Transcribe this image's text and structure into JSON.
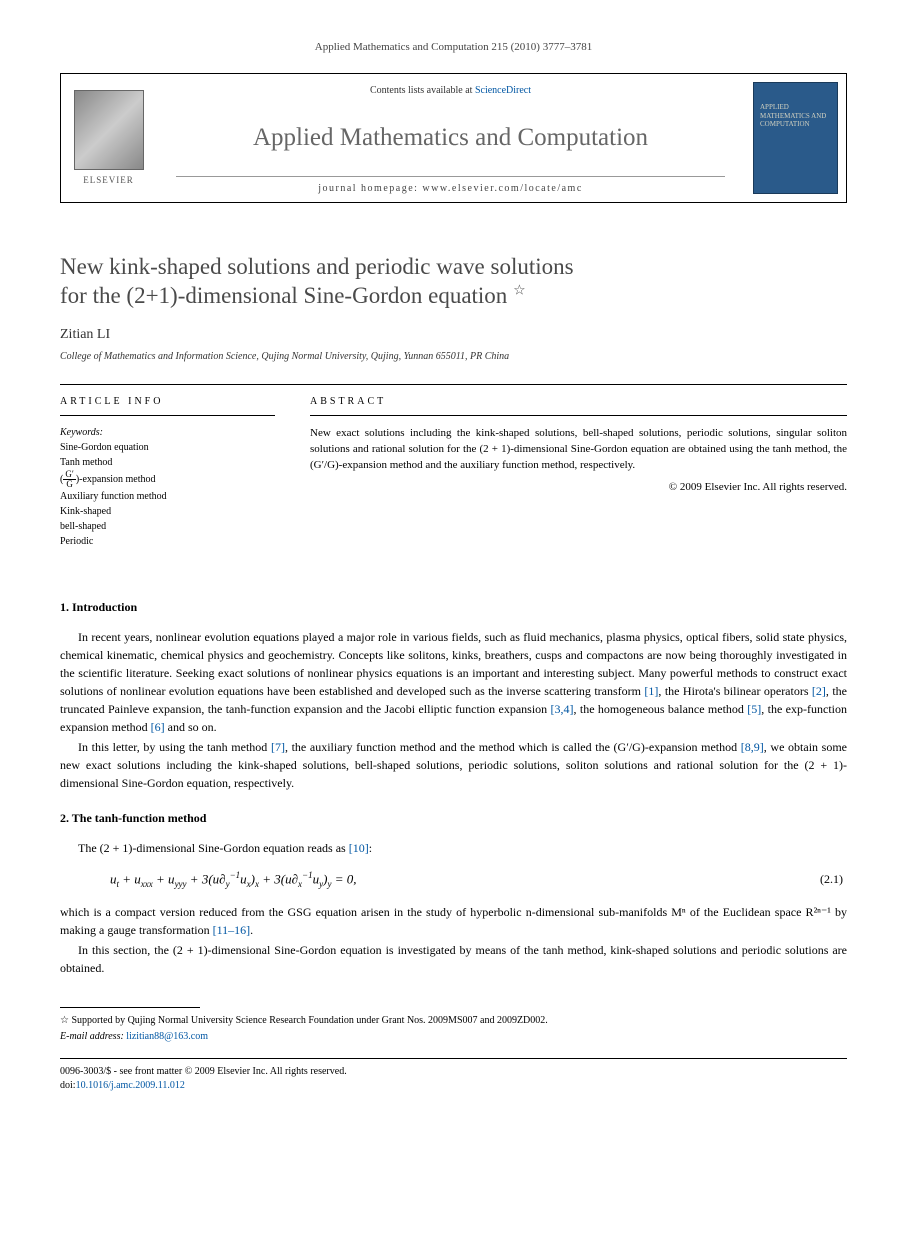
{
  "citation": "Applied Mathematics and Computation 215 (2010) 3777–3781",
  "banner": {
    "contents_prefix": "Contents lists available at ",
    "contents_link": "ScienceDirect",
    "journal_name": "Applied Mathematics and Computation",
    "homepage_label": "journal homepage: www.elsevier.com/locate/amc",
    "publisher": "ELSEVIER",
    "cover_text": "APPLIED MATHEMATICS AND COMPUTATION"
  },
  "title_line1": "New kink-shaped solutions and periodic wave solutions",
  "title_line2": "for the (2+1)-dimensional Sine-Gordon equation",
  "star": "☆",
  "author": "Zitian LI",
  "affiliation": "College of Mathematics and Information Science, Qujing Normal University, Qujing, Yunnan 655011, PR China",
  "info_heading": "ARTICLE INFO",
  "abstract_heading": "ABSTRACT",
  "keywords_label": "Keywords:",
  "keywords": [
    "Sine-Gordon equation",
    "Tanh method",
    "(G′/G)-expansion method",
    "Auxiliary function method",
    "Kink-shaped",
    "bell-shaped",
    "Periodic"
  ],
  "abstract": "New exact solutions including the kink-shaped solutions, bell-shaped solutions, periodic solutions, singular soliton solutions and rational solution for the (2 + 1)-dimensional Sine-Gordon equation are obtained using the tanh method, the (G′/G)-expansion method and the auxiliary function method, respectively.",
  "copyright": "© 2009 Elsevier Inc. All rights reserved.",
  "sections": {
    "intro_heading": "1. Introduction",
    "intro_p1": "In recent years, nonlinear evolution equations played a major role in various fields, such as fluid mechanics, plasma physics, optical fibers, solid state physics, chemical kinematic, chemical physics and geochemistry. Concepts like solitons, kinks, breathers, cusps and compactons are now being thoroughly investigated in the scientific literature. Seeking exact solutions of nonlinear physics equations is an important and interesting subject. Many powerful methods to construct exact solutions of nonlinear evolution equations have been established and developed such as the inverse scattering transform ",
    "intro_p1_r1": "[1]",
    "intro_p1_b": ", the Hirota's bilinear operators ",
    "intro_p1_r2": "[2]",
    "intro_p1_c": ", the truncated Painleve expansion, the tanh-function expansion and the Jacobi elliptic function expansion ",
    "intro_p1_r3": "[3,4]",
    "intro_p1_d": ", the homogeneous balance method ",
    "intro_p1_r5": "[5]",
    "intro_p1_e": ", the exp-function expansion method ",
    "intro_p1_r6": "[6]",
    "intro_p1_f": " and so on.",
    "intro_p2a": "In this letter, by using the tanh method ",
    "intro_p2_r7": "[7]",
    "intro_p2b": ", the auxiliary function method and the method which is called the (G′/G)-expansion method ",
    "intro_p2_r89": "[8,9]",
    "intro_p2c": ", we obtain some new exact solutions including the kink-shaped solutions, bell-shaped solutions, periodic solutions, soliton solutions and rational solution for the (2 + 1)-dimensional Sine-Gordon equation, respectively.",
    "tanh_heading": "2. The tanh-function method",
    "tanh_p1a": "The (2 + 1)-dimensional Sine-Gordon equation reads as ",
    "tanh_p1_r10": "[10]",
    "tanh_p1b": ":",
    "equation": "uₜ + uₓₓₓ + u_yyy + 3(u∂_y⁻¹uₓ)ₓ + 3(u∂ₓ⁻¹u_y)_y = 0,",
    "eq_num": "(2.1)",
    "tanh_p2a": "which is a compact version reduced from the GSG equation arisen in the study of hyperbolic n-dimensional sub-manifolds Mⁿ of the Euclidean space R²ⁿ⁻¹ by making a gauge transformation ",
    "tanh_p2_r": "[11–16]",
    "tanh_p2b": ".",
    "tanh_p3": "In this section, the (2 + 1)-dimensional Sine-Gordon equation is investigated by means of the tanh method, kink-shaped solutions and periodic solutions are obtained."
  },
  "footnotes": {
    "support": "☆ Supported by Qujing Normal University Science Research Foundation under Grant Nos. 2009MS007 and 2009ZD002.",
    "email_label": "E-mail address: ",
    "email": "lizitian88@163.com"
  },
  "bottom": {
    "issn_line": "0096-3003/$ - see front matter © 2009 Elsevier Inc. All rights reserved.",
    "doi_label": "doi:",
    "doi": "10.1016/j.amc.2009.11.012"
  }
}
